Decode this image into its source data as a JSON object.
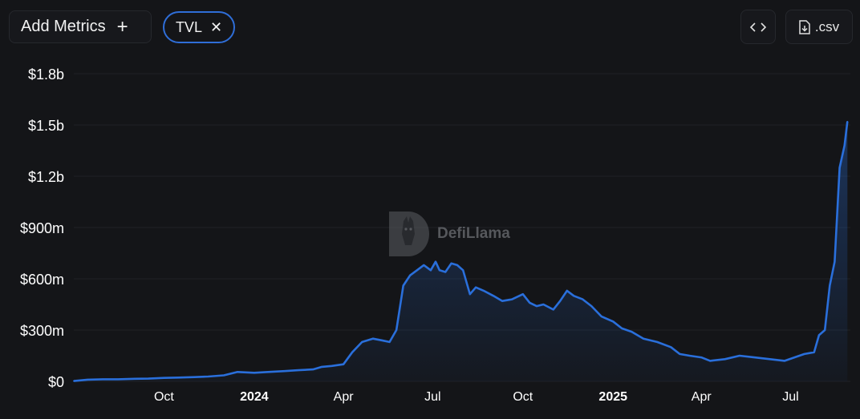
{
  "toolbar": {
    "add_metrics_label": "Add Metrics",
    "add_icon": "plus-icon",
    "chip_label": "TVL",
    "chip_close_icon": "close-icon",
    "embed_icon": "code-icon",
    "csv_icon": "download-file-icon",
    "csv_label": ".csv"
  },
  "watermark": {
    "text": "DefiLlama",
    "icon": "llama-logo"
  },
  "colors": {
    "background": "#141518",
    "line": "#2a6fdb",
    "grid": "#1f2126",
    "axis_text": "#ffffff"
  },
  "chart_data": {
    "type": "area",
    "title": "",
    "xlabel": "",
    "ylabel": "",
    "grid": true,
    "ylim": [
      0,
      1800
    ],
    "y_unit": "$m",
    "yticks": [
      {
        "value": 0,
        "label": "$0"
      },
      {
        "value": 300,
        "label": "$300m"
      },
      {
        "value": 600,
        "label": "$600m"
      },
      {
        "value": 900,
        "label": "$900m"
      },
      {
        "value": 1200,
        "label": "$1.2b"
      },
      {
        "value": 1500,
        "label": "$1.5b"
      },
      {
        "value": 1800,
        "label": "$1.8b"
      }
    ],
    "xlim": [
      "2023-07-01",
      "2025-08-31"
    ],
    "xticks": [
      {
        "date": "2023-10-01",
        "label": "Oct",
        "bold": false
      },
      {
        "date": "2024-01-01",
        "label": "2024",
        "bold": true
      },
      {
        "date": "2024-04-01",
        "label": "Apr",
        "bold": false
      },
      {
        "date": "2024-07-01",
        "label": "Jul",
        "bold": false
      },
      {
        "date": "2024-10-01",
        "label": "Oct",
        "bold": false
      },
      {
        "date": "2025-01-01",
        "label": "2025",
        "bold": true
      },
      {
        "date": "2025-04-01",
        "label": "Apr",
        "bold": false
      },
      {
        "date": "2025-07-01",
        "label": "Jul",
        "bold": false
      }
    ],
    "series": [
      {
        "name": "TVL",
        "points": [
          [
            "2023-07-01",
            2
          ],
          [
            "2023-07-15",
            10
          ],
          [
            "2023-08-01",
            12
          ],
          [
            "2023-08-15",
            12
          ],
          [
            "2023-09-01",
            15
          ],
          [
            "2023-09-15",
            16
          ],
          [
            "2023-10-01",
            20
          ],
          [
            "2023-10-15",
            22
          ],
          [
            "2023-11-01",
            25
          ],
          [
            "2023-11-15",
            28
          ],
          [
            "2023-12-01",
            35
          ],
          [
            "2023-12-15",
            55
          ],
          [
            "2024-01-01",
            50
          ],
          [
            "2024-01-15",
            55
          ],
          [
            "2024-02-01",
            60
          ],
          [
            "2024-02-15",
            65
          ],
          [
            "2024-03-01",
            70
          ],
          [
            "2024-03-10",
            85
          ],
          [
            "2024-03-20",
            90
          ],
          [
            "2024-04-01",
            100
          ],
          [
            "2024-04-10",
            170
          ],
          [
            "2024-04-20",
            230
          ],
          [
            "2024-05-01",
            250
          ],
          [
            "2024-05-10",
            240
          ],
          [
            "2024-05-18",
            230
          ],
          [
            "2024-05-25",
            300
          ],
          [
            "2024-06-01",
            560
          ],
          [
            "2024-06-08",
            620
          ],
          [
            "2024-06-15",
            650
          ],
          [
            "2024-06-22",
            680
          ],
          [
            "2024-06-29",
            650
          ],
          [
            "2024-07-04",
            700
          ],
          [
            "2024-07-08",
            650
          ],
          [
            "2024-07-14",
            640
          ],
          [
            "2024-07-20",
            690
          ],
          [
            "2024-07-26",
            680
          ],
          [
            "2024-08-01",
            650
          ],
          [
            "2024-08-08",
            510
          ],
          [
            "2024-08-14",
            550
          ],
          [
            "2024-08-22",
            530
          ],
          [
            "2024-09-01",
            500
          ],
          [
            "2024-09-10",
            470
          ],
          [
            "2024-09-20",
            480
          ],
          [
            "2024-10-01",
            510
          ],
          [
            "2024-10-08",
            460
          ],
          [
            "2024-10-15",
            440
          ],
          [
            "2024-10-22",
            450
          ],
          [
            "2024-11-01",
            420
          ],
          [
            "2024-11-08",
            470
          ],
          [
            "2024-11-15",
            530
          ],
          [
            "2024-11-22",
            500
          ],
          [
            "2024-12-01",
            480
          ],
          [
            "2024-12-10",
            440
          ],
          [
            "2024-12-20",
            380
          ],
          [
            "2025-01-01",
            350
          ],
          [
            "2025-01-10",
            310
          ],
          [
            "2025-01-20",
            290
          ],
          [
            "2025-02-01",
            250
          ],
          [
            "2025-02-15",
            230
          ],
          [
            "2025-03-01",
            200
          ],
          [
            "2025-03-10",
            160
          ],
          [
            "2025-03-20",
            150
          ],
          [
            "2025-04-01",
            140
          ],
          [
            "2025-04-10",
            120
          ],
          [
            "2025-04-25",
            130
          ],
          [
            "2025-05-10",
            150
          ],
          [
            "2025-05-25",
            140
          ],
          [
            "2025-06-10",
            130
          ],
          [
            "2025-06-25",
            120
          ],
          [
            "2025-07-05",
            140
          ],
          [
            "2025-07-15",
            160
          ],
          [
            "2025-07-25",
            170
          ],
          [
            "2025-07-30",
            270
          ],
          [
            "2025-08-05",
            300
          ],
          [
            "2025-08-10",
            560
          ],
          [
            "2025-08-15",
            700
          ],
          [
            "2025-08-20",
            1250
          ],
          [
            "2025-08-25",
            1380
          ],
          [
            "2025-08-28",
            1520
          ]
        ]
      }
    ]
  }
}
